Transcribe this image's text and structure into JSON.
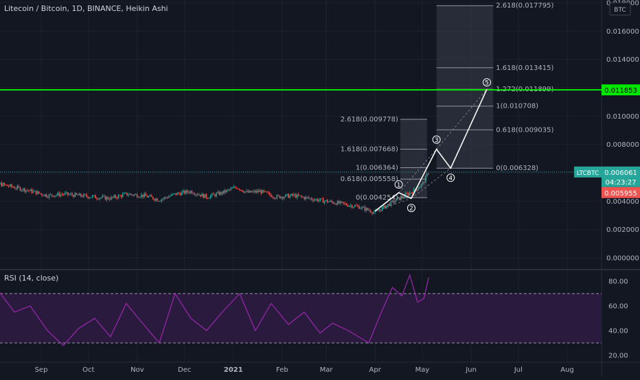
{
  "header": {
    "title": "Litecoin / Bitcoin, 1D, BINANCE, Heikin Ashi",
    "currency_badge": "BTC"
  },
  "colors": {
    "background": "#131722",
    "grid": "#1e222d",
    "text": "#b2b5be",
    "up": "#26a69a",
    "down": "#ef5350",
    "resistance": "#00e600",
    "rsi_line": "#9c27b0",
    "rsi_band": "#2a1a3d",
    "fib_box": "#3a3e4a",
    "wave": "#ffffff"
  },
  "price_labels": {
    "resistance": "0.011853",
    "symbol": "LTCBTC",
    "current": "0.006061",
    "countdown": "04:23:27",
    "prev": "0.005955"
  },
  "rsi": {
    "title": "RSI (14, close)",
    "upper": 70,
    "lower": 30,
    "ticks": [
      "80.00",
      "60.00",
      "40.00",
      "20.00"
    ],
    "tick_values": [
      80,
      60,
      40,
      20
    ]
  },
  "chart_data": {
    "type": "line",
    "x_ticks": [
      {
        "label": "Sep",
        "date": "2020-09-01"
      },
      {
        "label": "Oct",
        "date": "2020-10-01"
      },
      {
        "label": "Nov",
        "date": "2020-11-01"
      },
      {
        "label": "Dec",
        "date": "2020-12-01"
      },
      {
        "label": "2021",
        "date": "2021-01-01"
      },
      {
        "label": "Feb",
        "date": "2021-02-01"
      },
      {
        "label": "Mar",
        "date": "2021-03-01"
      },
      {
        "label": "Apr",
        "date": "2021-04-01"
      },
      {
        "label": "May",
        "date": "2021-05-01"
      },
      {
        "label": "Jun",
        "date": "2021-06-01"
      },
      {
        "label": "Jul",
        "date": "2021-07-01"
      },
      {
        "label": "Aug",
        "date": "2021-08-01"
      }
    ],
    "x_start": "2020-07-25",
    "y_ticks": [
      "0.018000",
      "0.016000",
      "0.014000",
      "0.012000",
      "0.010000",
      "0.008000",
      "0.006000",
      "0.004000",
      "0.002000",
      "0.000000"
    ],
    "y_tick_values": [
      0.018,
      0.016,
      0.014,
      0.012,
      0.01,
      0.008,
      0.006,
      0.004,
      0.002,
      0.0
    ],
    "ylim": [
      0,
      0.018
    ],
    "price_series": [
      {
        "date": "2020-07-25",
        "value": 0.005
      },
      {
        "date": "2020-08-02",
        "value": 0.0053
      },
      {
        "date": "2020-08-10",
        "value": 0.0051
      },
      {
        "date": "2020-08-18",
        "value": 0.0049
      },
      {
        "date": "2020-08-26",
        "value": 0.0047
      },
      {
        "date": "2020-09-05",
        "value": 0.0044
      },
      {
        "date": "2020-09-15",
        "value": 0.0045
      },
      {
        "date": "2020-09-25",
        "value": 0.0044
      },
      {
        "date": "2020-10-05",
        "value": 0.0043
      },
      {
        "date": "2020-10-15",
        "value": 0.0042
      },
      {
        "date": "2020-10-25",
        "value": 0.0045
      },
      {
        "date": "2020-11-05",
        "value": 0.0044
      },
      {
        "date": "2020-11-15",
        "value": 0.0041
      },
      {
        "date": "2020-11-25",
        "value": 0.0045
      },
      {
        "date": "2020-12-05",
        "value": 0.0047
      },
      {
        "date": "2020-12-15",
        "value": 0.0043
      },
      {
        "date": "2020-12-25",
        "value": 0.0046
      },
      {
        "date": "2021-01-03",
        "value": 0.005
      },
      {
        "date": "2021-01-10",
        "value": 0.0046
      },
      {
        "date": "2021-01-18",
        "value": 0.0047
      },
      {
        "date": "2021-01-28",
        "value": 0.0043
      },
      {
        "date": "2021-02-08",
        "value": 0.0044
      },
      {
        "date": "2021-02-18",
        "value": 0.0042
      },
      {
        "date": "2021-03-01",
        "value": 0.004
      },
      {
        "date": "2021-03-12",
        "value": 0.0038
      },
      {
        "date": "2021-03-22",
        "value": 0.0036
      },
      {
        "date": "2021-04-01",
        "value": 0.0032
      },
      {
        "date": "2021-04-10",
        "value": 0.0038
      },
      {
        "date": "2021-04-18",
        "value": 0.0043
      },
      {
        "date": "2021-04-25",
        "value": 0.0047
      },
      {
        "date": "2021-05-01",
        "value": 0.0052
      },
      {
        "date": "2021-05-05",
        "value": 0.00606
      }
    ],
    "rsi_series": [
      {
        "date": "2020-07-25",
        "value": 58
      },
      {
        "date": "2020-08-05",
        "value": 72
      },
      {
        "date": "2020-08-15",
        "value": 55
      },
      {
        "date": "2020-08-25",
        "value": 60
      },
      {
        "date": "2020-09-05",
        "value": 40
      },
      {
        "date": "2020-09-15",
        "value": 28
      },
      {
        "date": "2020-09-25",
        "value": 42
      },
      {
        "date": "2020-10-05",
        "value": 50
      },
      {
        "date": "2020-10-15",
        "value": 35
      },
      {
        "date": "2020-10-25",
        "value": 62
      },
      {
        "date": "2020-11-05",
        "value": 45
      },
      {
        "date": "2020-11-15",
        "value": 30
      },
      {
        "date": "2020-11-25",
        "value": 70
      },
      {
        "date": "2020-12-05",
        "value": 50
      },
      {
        "date": "2020-12-15",
        "value": 40
      },
      {
        "date": "2020-12-25",
        "value": 55
      },
      {
        "date": "2021-01-05",
        "value": 70
      },
      {
        "date": "2021-01-15",
        "value": 40
      },
      {
        "date": "2021-01-25",
        "value": 62
      },
      {
        "date": "2021-02-05",
        "value": 45
      },
      {
        "date": "2021-02-15",
        "value": 55
      },
      {
        "date": "2021-02-25",
        "value": 38
      },
      {
        "date": "2021-03-05",
        "value": 46
      },
      {
        "date": "2021-03-15",
        "value": 40
      },
      {
        "date": "2021-03-28",
        "value": 30
      },
      {
        "date": "2021-04-05",
        "value": 55
      },
      {
        "date": "2021-04-12",
        "value": 75
      },
      {
        "date": "2021-04-18",
        "value": 68
      },
      {
        "date": "2021-04-23",
        "value": 85
      },
      {
        "date": "2021-04-28",
        "value": 63
      },
      {
        "date": "2021-05-02",
        "value": 66
      },
      {
        "date": "2021-05-05",
        "value": 83
      }
    ],
    "resistance_level": 0.011853,
    "wave_points": [
      {
        "date": "2021-04-01",
        "value": 0.0033,
        "label": ""
      },
      {
        "date": "2021-04-16",
        "value": 0.0046,
        "label": "1"
      },
      {
        "date": "2021-04-24",
        "value": 0.0042,
        "label": "2"
      },
      {
        "date": "2021-05-10",
        "value": 0.00767,
        "label": "3"
      },
      {
        "date": "2021-05-19",
        "value": 0.00633,
        "label": "4"
      },
      {
        "date": "2021-06-11",
        "value": 0.0119,
        "label": "5"
      }
    ],
    "fib_extension_left": {
      "date_start": "2021-04-17",
      "date_end": "2021-05-04",
      "levels": [
        {
          "label": "2.618(0.009778)",
          "value": 0.009778
        },
        {
          "label": "1.618(0.007668)",
          "value": 0.007668
        },
        {
          "label": "1(0.006364)",
          "value": 0.006364
        },
        {
          "label": "0.618(0.005558)",
          "value": 0.005558
        },
        {
          "label": "0(0.004254)",
          "value": 0.004254
        }
      ]
    },
    "fib_extension_right": {
      "date_start": "2021-05-10",
      "date_end": "2021-06-15",
      "levels": [
        {
          "label": "2.618(0.017795)",
          "value": 0.017795
        },
        {
          "label": "1.618(0.013415)",
          "value": 0.013415
        },
        {
          "label": "1.272(0.011899)",
          "value": 0.011899
        },
        {
          "label": "1(0.010708)",
          "value": 0.010708
        },
        {
          "label": "0.618(0.009035)",
          "value": 0.009035
        },
        {
          "label": "0(0.006328)",
          "value": 0.006328
        }
      ]
    }
  }
}
